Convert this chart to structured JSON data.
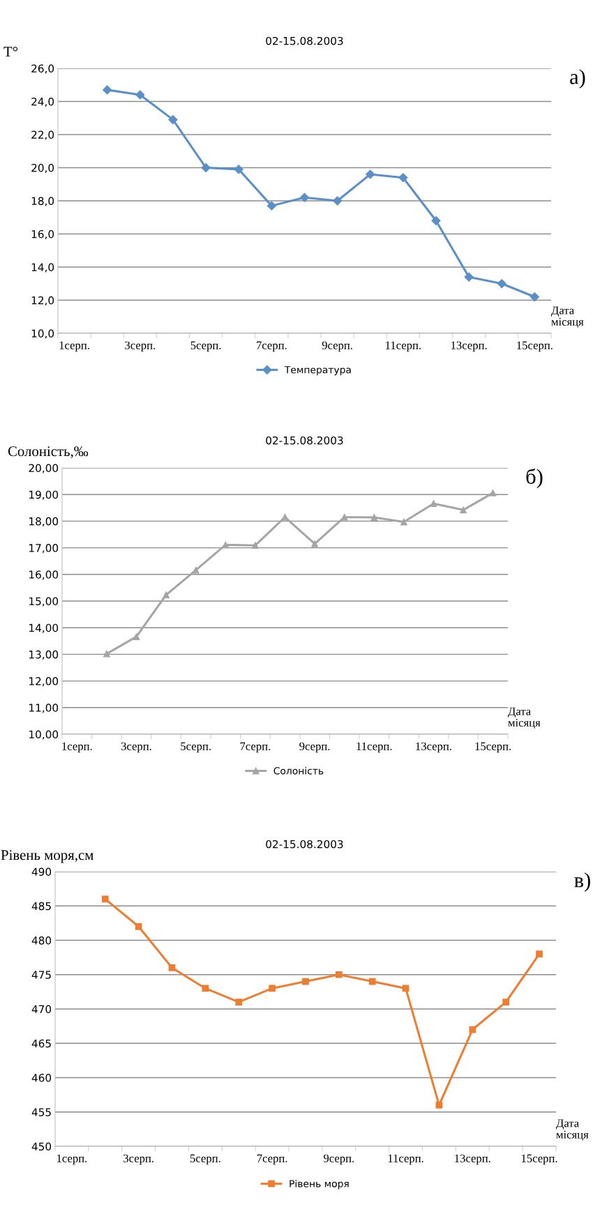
{
  "chart_data": [
    {
      "type": "line",
      "title": "02-15.08.2003",
      "ylabel": "T°",
      "xlabel": "Дата\nмісяця",
      "annotations": [
        "а)"
      ],
      "categories": [
        "1серп.",
        null,
        "3серп.",
        null,
        "5серп.",
        null,
        "7серп.",
        null,
        "9серп.",
        null,
        "11серп.",
        null,
        "13серп.",
        null,
        "15серп."
      ],
      "series": [
        {
          "name": "Температура",
          "color": "#5b8fc7",
          "values": [
            null,
            24.7,
            24.4,
            22.9,
            20.0,
            19.9,
            17.7,
            18.2,
            18.0,
            19.6,
            19.4,
            16.8,
            13.4,
            13.0,
            12.2
          ]
        }
      ],
      "ylim": [
        10,
        26
      ],
      "yticks": [
        {
          "value": 10,
          "label": "10,0"
        },
        {
          "value": 12,
          "label": "12,0"
        },
        {
          "value": 14,
          "label": "14,0"
        },
        {
          "value": 16,
          "label": "16,0"
        },
        {
          "value": 18,
          "label": "18,0"
        },
        {
          "value": 20,
          "label": "20,0"
        },
        {
          "value": 22,
          "label": "22,0"
        },
        {
          "value": 24,
          "label": "24,0"
        },
        {
          "value": 26,
          "label": "26,0"
        }
      ],
      "grid": "y",
      "legend": "bottom",
      "marker": "diamond",
      "line_style": "solid"
    },
    {
      "type": "line",
      "title": "02-15.08.2003",
      "ylabel": "Солоність,‰",
      "xlabel": "Дата\nмісяця",
      "annotations": [
        "б)"
      ],
      "categories": [
        "1серп.",
        null,
        "3серп.",
        null,
        "5серп.",
        null,
        "7серп.",
        null,
        "9серп.",
        null,
        "11серп.",
        null,
        "13серп.",
        null,
        "15серп."
      ],
      "series": [
        {
          "name": "Солоність",
          "color": "#a5a5a5",
          "values": [
            null,
            13.02,
            13.66,
            15.23,
            16.16,
            17.11,
            17.09,
            18.15,
            17.15,
            18.15,
            18.14,
            17.97,
            18.66,
            18.42,
            19.06
          ]
        }
      ],
      "ylim": [
        10,
        20
      ],
      "yticks": [
        {
          "value": 10,
          "label": "10,00"
        },
        {
          "value": 11,
          "label": "11,00"
        },
        {
          "value": 12,
          "label": "12,00"
        },
        {
          "value": 13,
          "label": "13,00"
        },
        {
          "value": 14,
          "label": "14,00"
        },
        {
          "value": 15,
          "label": "15,00"
        },
        {
          "value": 16,
          "label": "16,00"
        },
        {
          "value": 17,
          "label": "17,00"
        },
        {
          "value": 18,
          "label": "18,00"
        },
        {
          "value": 19,
          "label": "19,00"
        },
        {
          "value": 20,
          "label": "20,00"
        }
      ],
      "grid": "y",
      "legend": "bottom",
      "marker": "triangle",
      "line_style": "solid"
    },
    {
      "type": "line",
      "title": "02-15.08.2003",
      "ylabel": "Рівень моря,см",
      "xlabel": "Дата\nмісяця",
      "annotations": [
        "в)"
      ],
      "categories": [
        "1серп.",
        null,
        "3серп.",
        null,
        "5серп.",
        null,
        "7серп.",
        null,
        "9серп.",
        null,
        "11серп.",
        null,
        "13серп.",
        null,
        "15серп."
      ],
      "series": [
        {
          "name": "Рівень моря",
          "color": "#ed7d31",
          "values": [
            null,
            486,
            482,
            476,
            473,
            471,
            473,
            474,
            475,
            474,
            473,
            456,
            467,
            471,
            478
          ]
        }
      ],
      "ylim": [
        450,
        490
      ],
      "yticks": [
        450,
        455,
        460,
        465,
        470,
        475,
        480,
        485,
        490
      ],
      "grid": "y",
      "legend": "bottom",
      "marker": "square",
      "line_style": "solid"
    }
  ]
}
